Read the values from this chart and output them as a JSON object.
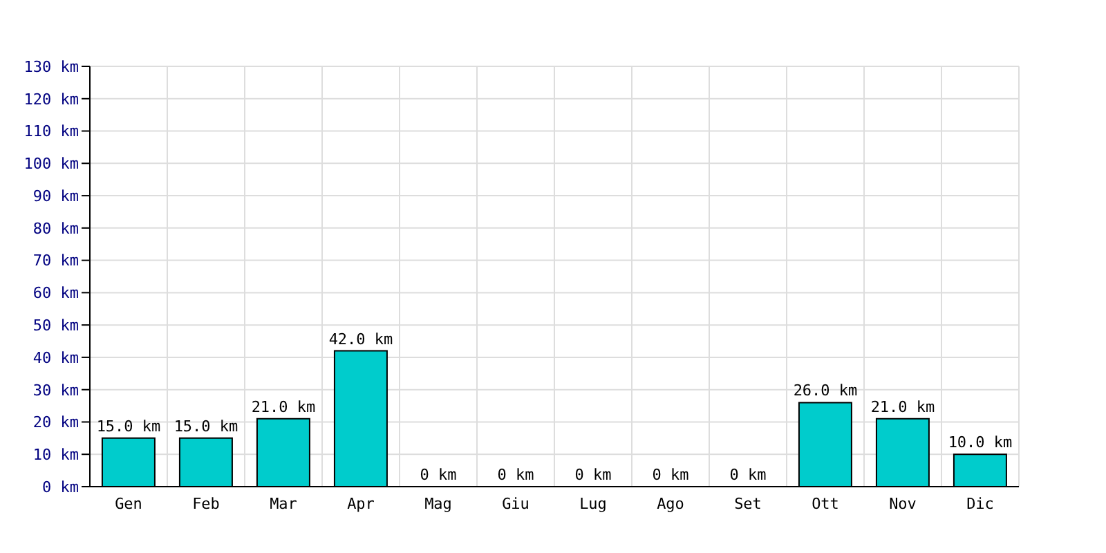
{
  "chart_data": {
    "type": "bar",
    "categories": [
      "Gen",
      "Feb",
      "Mar",
      "Apr",
      "Mag",
      "Giu",
      "Lug",
      "Ago",
      "Set",
      "Ott",
      "Nov",
      "Dic"
    ],
    "values": [
      15,
      15,
      21,
      42,
      0,
      0,
      0,
      0,
      0,
      26,
      21,
      10
    ],
    "value_labels": [
      "15.0 km",
      "15.0 km",
      "21.0 km",
      "42.0 km",
      "0 km",
      "0 km",
      "0 km",
      "0 km",
      "0 km",
      "26.0 km",
      "21.0 km",
      "10.0 km"
    ],
    "color": "#00cccc",
    "ylim": [
      0,
      130
    ],
    "yticks": [
      {
        "value": 0,
        "label": "0 km"
      },
      {
        "value": 10,
        "label": "10 km"
      },
      {
        "value": 20,
        "label": "20 km"
      },
      {
        "value": 30,
        "label": "30 km"
      },
      {
        "value": 40,
        "label": "40 km"
      },
      {
        "value": 50,
        "label": "50 km"
      },
      {
        "value": 60,
        "label": "60 km"
      },
      {
        "value": 70,
        "label": "70 km"
      },
      {
        "value": 80,
        "label": "80 km"
      },
      {
        "value": 90,
        "label": "90 km"
      },
      {
        "value": 100,
        "label": "100 km"
      },
      {
        "value": 110,
        "label": "110 km"
      },
      {
        "value": 120,
        "label": "120 km"
      },
      {
        "value": 130,
        "label": "130 km"
      }
    ],
    "grid": true
  }
}
